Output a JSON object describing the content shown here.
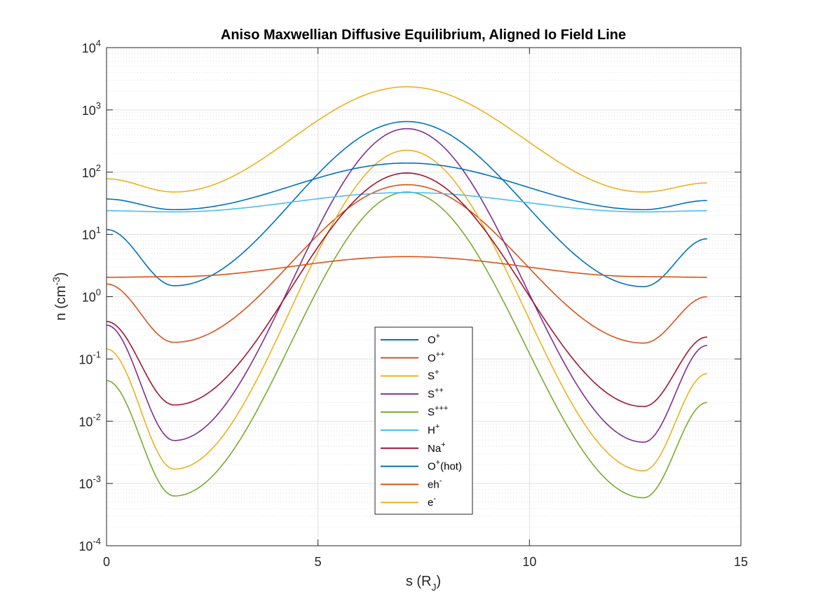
{
  "chart_data": {
    "type": "line",
    "title": "Aniso Maxwellian Diffusive Equilibrium, Aligned Io Field Line",
    "xlabel": {
      "main": "s (R",
      "sub": "J",
      "close": ")"
    },
    "ylabel": {
      "main": "n (cm",
      "sup": "-3",
      "close": ")"
    },
    "xlim": [
      0,
      15
    ],
    "ylim_log10": [
      -4,
      4
    ],
    "y_scale": "log",
    "x_ticks": [
      0,
      5,
      10,
      15
    ],
    "y_ticks": [
      {
        "base": "10",
        "exp": "-4"
      },
      {
        "base": "10",
        "exp": "-3"
      },
      {
        "base": "10",
        "exp": "-2"
      },
      {
        "base": "10",
        "exp": "-1"
      },
      {
        "base": "10",
        "exp": "0"
      },
      {
        "base": "10",
        "exp": "1"
      },
      {
        "base": "10",
        "exp": "2"
      },
      {
        "base": "10",
        "exp": "3"
      },
      {
        "base": "10",
        "exp": "4"
      }
    ],
    "grid": "major and minor (log)",
    "legend_placement": "bottom-center",
    "series": [
      {
        "name": "O+",
        "label": {
          "base": "O",
          "sup": "+"
        },
        "color": "#0072BD",
        "x": [
          0,
          1.6,
          7.1,
          12.7,
          14.2
        ],
        "y": [
          12,
          1.5,
          650,
          1.45,
          8.5
        ]
      },
      {
        "name": "O++",
        "label": {
          "base": "O",
          "sup": "++"
        },
        "color": "#D95319",
        "x": [
          0,
          1.6,
          7.1,
          12.7,
          14.2
        ],
        "y": [
          1.6,
          0.185,
          63,
          0.18,
          1.0
        ]
      },
      {
        "name": "S+",
        "label": {
          "base": "S",
          "sup": "+"
        },
        "color": "#EDB120",
        "x": [
          0,
          1.6,
          7.1,
          12.7,
          14.2
        ],
        "y": [
          0.145,
          0.0017,
          225,
          0.0016,
          0.058
        ]
      },
      {
        "name": "S++",
        "label": {
          "base": "S",
          "sup": "++"
        },
        "color": "#7E2F8E",
        "x": [
          0,
          1.6,
          7.1,
          12.7,
          14.2
        ],
        "y": [
          0.35,
          0.0049,
          500,
          0.0046,
          0.165
        ]
      },
      {
        "name": "S+++",
        "label": {
          "base": "S",
          "sup": "+++"
        },
        "color": "#77AC30",
        "x": [
          0,
          1.6,
          7.1,
          12.7,
          14.2
        ],
        "y": [
          0.045,
          0.00063,
          48,
          0.00059,
          0.02
        ]
      },
      {
        "name": "H+",
        "label": {
          "base": "H",
          "sup": "+"
        },
        "color": "#4DBEEE",
        "x": [
          0,
          1.6,
          7.1,
          12.7,
          14.2
        ],
        "y": [
          24,
          23,
          47,
          23,
          24
        ]
      },
      {
        "name": "Na+",
        "label": {
          "base": "Na",
          "sup": "+"
        },
        "color": "#A2142F",
        "x": [
          0,
          1.6,
          7.1,
          12.7,
          14.2
        ],
        "y": [
          0.4,
          0.0182,
          97,
          0.0172,
          0.225
        ]
      },
      {
        "name": "O+(hot)",
        "label": {
          "base": "O",
          "sup": "+",
          "tail": "(hot)"
        },
        "color": "#0072BD",
        "x": [
          0,
          1.6,
          7.1,
          12.7,
          14.2
        ],
        "y": [
          37,
          25,
          140,
          25,
          35
        ]
      },
      {
        "name": "eh-",
        "label": {
          "base": "eh",
          "sup": "-"
        },
        "color": "#D95319",
        "x": [
          0,
          1.6,
          7.1,
          12.7,
          14.2
        ],
        "y": [
          2.05,
          2.1,
          4.4,
          2.1,
          2.05
        ]
      },
      {
        "name": "e-",
        "label": {
          "base": "e",
          "sup": "-"
        },
        "color": "#EDB120",
        "x": [
          0,
          1.6,
          7.1,
          12.7,
          14.2
        ],
        "y": [
          78,
          48,
          2350,
          48,
          67
        ]
      }
    ]
  }
}
